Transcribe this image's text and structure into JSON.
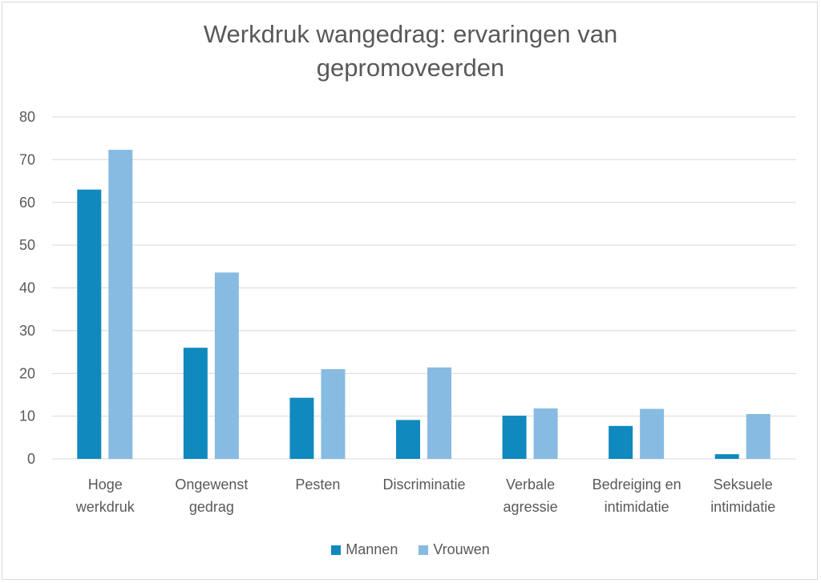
{
  "chart_data": {
    "type": "bar",
    "title": "Werkdruk wangedrag: ervaringen van gepromoveerden",
    "title_lines": [
      "Werkdruk wangedrag: ervaringen van",
      "gepromoveerden"
    ],
    "categories": [
      [
        "Hoge",
        "werkdruk"
      ],
      [
        "Ongewenst",
        "gedrag"
      ],
      [
        "Pesten"
      ],
      [
        "Discriminatie"
      ],
      [
        "Verbale",
        "agressie"
      ],
      [
        "Bedreiging en",
        "intimidatie"
      ],
      [
        "Seksuele",
        "intimidatie"
      ]
    ],
    "series": [
      {
        "name": "Mannen",
        "color": "#1089BE",
        "values": [
          63.0,
          26.0,
          14.3,
          9.1,
          10.1,
          7.7,
          1.1
        ]
      },
      {
        "name": "Vrouwen",
        "color": "#87BBE1",
        "values": [
          72.3,
          43.6,
          21.0,
          21.4,
          11.8,
          11.7,
          10.5
        ]
      }
    ],
    "ylim": [
      0,
      80
    ],
    "yticks": [
      0,
      10,
      20,
      30,
      40,
      50,
      60,
      70,
      80
    ],
    "xlabel": "",
    "ylabel": "",
    "grid": true,
    "legend": "bottom"
  }
}
